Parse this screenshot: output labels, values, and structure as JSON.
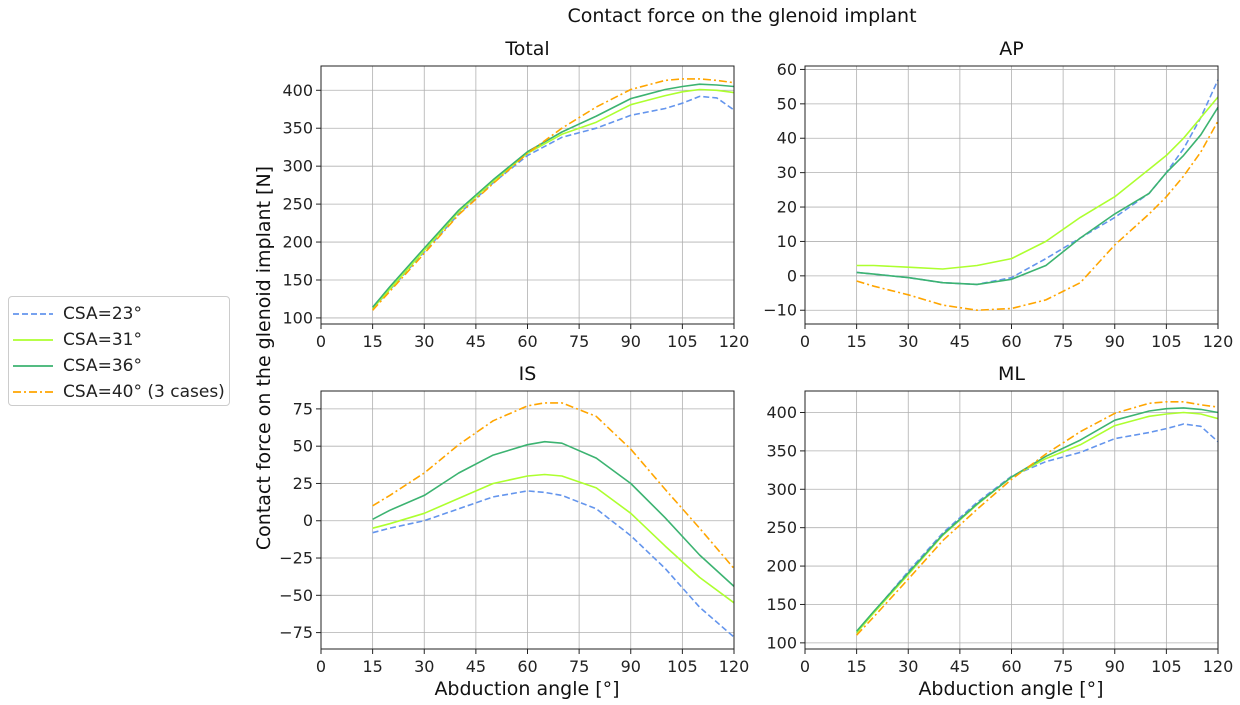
{
  "figure": {
    "suptitle": "Contact force on the glenoid implant",
    "ylabel": "Contact force on the glenoid implant [N]",
    "xlabel": "Abduction angle [°]"
  },
  "legend": [
    {
      "label": "CSA=23°",
      "color": "#6495ED",
      "dash": "dashed"
    },
    {
      "label": "CSA=31°",
      "color": "#ADFF2F",
      "dash": "solid"
    },
    {
      "label": "CSA=36°",
      "color": "#3CB371",
      "dash": "solid"
    },
    {
      "label": "CSA=40° (3 cases)",
      "color": "#FFA500",
      "dash": "dashdot"
    }
  ],
  "chart_data": [
    {
      "type": "line",
      "title": "Total",
      "xlabel": "",
      "ylabel": "Contact force on the glenoid implant [N]",
      "xlim": [
        0,
        120
      ],
      "ylim": [
        92,
        432
      ],
      "xticks": [
        0,
        15,
        30,
        45,
        60,
        75,
        90,
        105,
        120
      ],
      "yticks": [
        100,
        150,
        200,
        250,
        300,
        350,
        400
      ],
      "grid": true,
      "x": [
        15,
        20,
        30,
        40,
        50,
        60,
        70,
        80,
        90,
        100,
        105,
        110,
        115,
        120
      ],
      "series": [
        {
          "name": "CSA=23°",
          "values": [
            112,
            137,
            187,
            237,
            278,
            314,
            338,
            350,
            367,
            376,
            383,
            392,
            390,
            374
          ]
        },
        {
          "name": "CSA=31°",
          "values": [
            112,
            138,
            189,
            240,
            280,
            317,
            342,
            358,
            381,
            393,
            398,
            401,
            400,
            397
          ]
        },
        {
          "name": "CSA=36°",
          "values": [
            114,
            141,
            192,
            242,
            282,
            319,
            345,
            366,
            389,
            401,
            405,
            408,
            407,
            405
          ]
        },
        {
          "name": "CSA=40° (3 cases)",
          "values": [
            110,
            135,
            185,
            236,
            277,
            317,
            350,
            378,
            401,
            413,
            415,
            415,
            413,
            410
          ]
        }
      ]
    },
    {
      "type": "line",
      "title": "AP",
      "xlabel": "",
      "ylabel": "",
      "xlim": [
        0,
        120
      ],
      "ylim": [
        -14,
        61
      ],
      "xticks": [
        0,
        15,
        30,
        45,
        60,
        75,
        90,
        105,
        120
      ],
      "yticks": [
        -10,
        0,
        10,
        20,
        30,
        40,
        50,
        60
      ],
      "grid": true,
      "x": [
        15,
        20,
        30,
        40,
        50,
        60,
        70,
        80,
        90,
        100,
        105,
        110,
        115,
        120
      ],
      "series": [
        {
          "name": "CSA=23°",
          "values": [
            1,
            0.5,
            -0.5,
            -2,
            -2.5,
            -0.5,
            5,
            11,
            17,
            24,
            30,
            37,
            46,
            57
          ]
        },
        {
          "name": "CSA=31°",
          "values": [
            3,
            3,
            2.5,
            2,
            3,
            5,
            10,
            17,
            23,
            31,
            35,
            40,
            46,
            52
          ]
        },
        {
          "name": "CSA=36°",
          "values": [
            1,
            0.5,
            -0.5,
            -2,
            -2.5,
            -1,
            3,
            11,
            18,
            24,
            30,
            35,
            41,
            49
          ]
        },
        {
          "name": "CSA=40° (3 cases)",
          "values": [
            -1.5,
            -3,
            -5.5,
            -8.5,
            -10,
            -9.5,
            -7,
            -2,
            9,
            18,
            23,
            29,
            36,
            45
          ]
        }
      ]
    },
    {
      "type": "line",
      "title": "IS",
      "xlabel": "Abduction angle [°]",
      "ylabel": "Contact force on the glenoid implant [N]",
      "xlim": [
        0,
        120
      ],
      "ylim": [
        -86,
        87
      ],
      "xticks": [
        0,
        15,
        30,
        45,
        60,
        75,
        90,
        105,
        120
      ],
      "yticks": [
        -75,
        -50,
        -25,
        0,
        25,
        50,
        75
      ],
      "grid": true,
      "x": [
        15,
        20,
        30,
        40,
        50,
        60,
        65,
        70,
        80,
        90,
        100,
        110,
        120
      ],
      "series": [
        {
          "name": "CSA=23°",
          "values": [
            -8,
            -5,
            0,
            8,
            16,
            20,
            19,
            17,
            8,
            -10,
            -32,
            -58,
            -78
          ]
        },
        {
          "name": "CSA=31°",
          "values": [
            -5,
            -2,
            5,
            15,
            25,
            30,
            31,
            30,
            22,
            5,
            -17,
            -38,
            -55
          ]
        },
        {
          "name": "CSA=36°",
          "values": [
            1,
            7,
            17,
            32,
            44,
            51,
            53,
            52,
            42,
            25,
            2,
            -23,
            -44
          ]
        },
        {
          "name": "CSA=40° (3 cases)",
          "values": [
            10,
            17,
            32,
            51,
            67,
            77,
            79,
            79,
            70,
            48,
            21,
            -5,
            -32
          ]
        }
      ]
    },
    {
      "type": "line",
      "title": "ML",
      "xlabel": "Abduction angle [°]",
      "ylabel": "",
      "xlim": [
        0,
        120
      ],
      "ylim": [
        92,
        428
      ],
      "xticks": [
        0,
        15,
        30,
        45,
        60,
        75,
        90,
        105,
        120
      ],
      "yticks": [
        100,
        150,
        200,
        250,
        300,
        350,
        400
      ],
      "grid": true,
      "x": [
        15,
        20,
        30,
        40,
        50,
        60,
        70,
        80,
        90,
        100,
        105,
        110,
        115,
        120
      ],
      "series": [
        {
          "name": "CSA=23°",
          "values": [
            113,
            140,
            193,
            243,
            283,
            317,
            336,
            348,
            366,
            374,
            379,
            385,
            382,
            362
          ]
        },
        {
          "name": "CSA=31°",
          "values": [
            113,
            139,
            189,
            240,
            280,
            316,
            340,
            358,
            383,
            395,
            398,
            400,
            398,
            392
          ]
        },
        {
          "name": "CSA=36°",
          "values": [
            115,
            141,
            191,
            241,
            281,
            316,
            343,
            364,
            390,
            402,
            405,
            406,
            404,
            400
          ]
        },
        {
          "name": "CSA=40° (3 cases)",
          "values": [
            110,
            134,
            183,
            233,
            274,
            313,
            346,
            375,
            399,
            412,
            414,
            414,
            410,
            407
          ]
        }
      ]
    }
  ]
}
